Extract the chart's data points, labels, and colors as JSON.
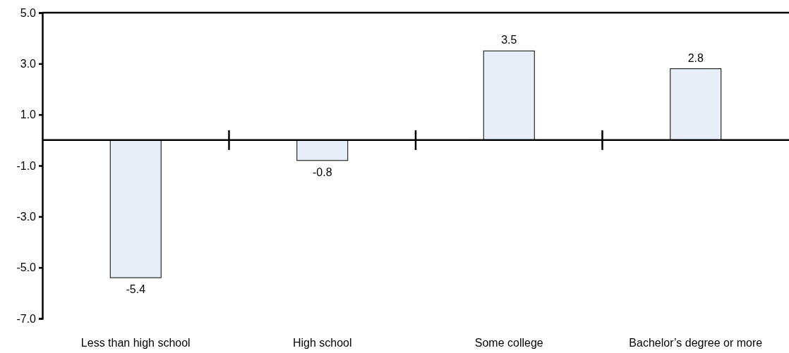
{
  "chart_data": {
    "type": "bar",
    "categories": [
      "Less than high school",
      "High school",
      "Some college",
      "Bachelor’s degree or more"
    ],
    "values": [
      -5.4,
      -0.8,
      3.5,
      2.8
    ],
    "color": "#e8eef8",
    "ylim": [
      -7,
      5
    ],
    "yticks": [
      {
        "value": -7,
        "label": "-7.0"
      },
      {
        "value": -5,
        "label": "-5.0"
      },
      {
        "value": -3,
        "label": "-3.0"
      },
      {
        "value": -1,
        "label": "-1.0"
      },
      {
        "value": 1,
        "label": "1.0"
      },
      {
        "value": 3,
        "label": "3.0"
      },
      {
        "value": 5,
        "label": "5.0"
      }
    ],
    "data_labels": true,
    "grid": false
  }
}
